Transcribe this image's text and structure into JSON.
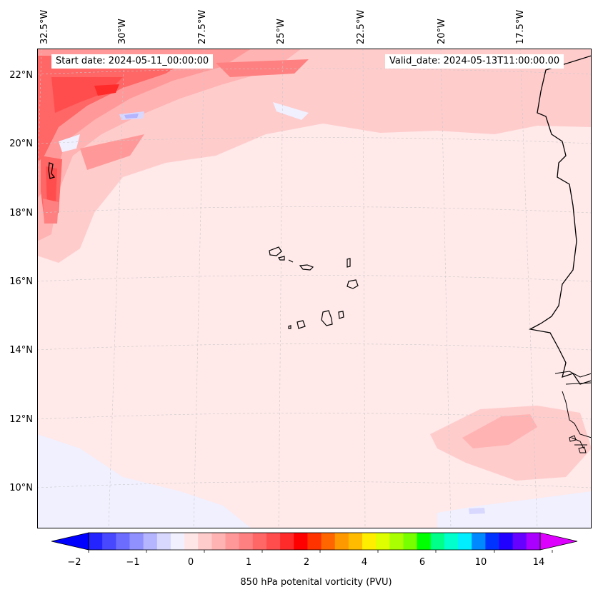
{
  "map": {
    "start_label": "Start date: 2024-05-11_00:00:00",
    "valid_label": "Valid_date: 2024-05-13T11:00:00.00",
    "lon_labels": [
      "32.5°W",
      "30°W",
      "27.5°W",
      "25°W",
      "22.5°W",
      "20°W",
      "17.5°W"
    ],
    "lat_labels": [
      "22°N",
      "20°N",
      "18°N",
      "16°N",
      "14°N",
      "12°N",
      "10°N"
    ],
    "background_color": "#ffe9e9"
  },
  "colorbar": {
    "label": "850 hPa potenital vorticity (PVU)",
    "tick_labels": [
      "−2",
      "−1",
      "0",
      "1",
      "2",
      "4",
      "6",
      "10",
      "14"
    ],
    "colors": [
      "#0000ff",
      "#2424ff",
      "#4848ff",
      "#6c6cff",
      "#9090ff",
      "#b4b4ff",
      "#d8d8ff",
      "#f0f0ff",
      "#ffe6e6",
      "#ffcccc",
      "#ffb3b3",
      "#ff9999",
      "#ff8080",
      "#ff6666",
      "#ff4d4d",
      "#ff2a2a",
      "#ff0000",
      "#ff3300",
      "#ff6600",
      "#ff9900",
      "#ffbb00",
      "#ffee00",
      "#ddff00",
      "#aaff00",
      "#77ff00",
      "#00ff00",
      "#00ff88",
      "#00ffcc",
      "#00eeff",
      "#0088ff",
      "#0033ff",
      "#2200ff",
      "#6600ff",
      "#aa00ff",
      "#dd00ff"
    ]
  }
}
